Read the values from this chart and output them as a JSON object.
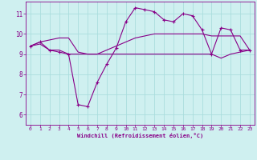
{
  "xlabel": "Windchill (Refroidissement éolien,°C)",
  "xlim": [
    -0.5,
    23.5
  ],
  "ylim": [
    5.5,
    11.6
  ],
  "yticks": [
    6,
    7,
    8,
    9,
    10,
    11
  ],
  "xticks": [
    0,
    1,
    2,
    3,
    4,
    5,
    6,
    7,
    8,
    9,
    10,
    11,
    12,
    13,
    14,
    15,
    16,
    17,
    18,
    19,
    20,
    21,
    22,
    23
  ],
  "bg_color": "#cff0f0",
  "line_color": "#880088",
  "grid_color": "#aadddd",
  "line1_x": [
    0,
    1,
    2,
    3,
    4,
    5,
    6,
    7,
    8,
    9,
    10,
    11,
    12,
    13,
    14,
    15,
    16,
    17,
    18,
    19,
    20,
    21,
    22,
    23
  ],
  "line1_y": [
    9.4,
    9.6,
    9.2,
    9.1,
    9.0,
    6.5,
    6.4,
    7.6,
    8.5,
    9.3,
    10.6,
    11.3,
    11.2,
    11.1,
    10.7,
    10.6,
    11.0,
    10.9,
    10.2,
    9.0,
    10.3,
    10.2,
    9.2,
    9.2
  ],
  "line2_x": [
    0,
    1,
    2,
    3,
    4,
    5,
    6,
    7,
    8,
    9,
    10,
    11,
    12,
    13,
    14,
    15,
    16,
    17,
    18,
    19,
    20,
    21,
    22,
    23
  ],
  "line2_y": [
    9.4,
    9.5,
    9.2,
    9.2,
    9.0,
    9.0,
    9.0,
    9.0,
    9.0,
    9.0,
    9.0,
    9.0,
    9.0,
    9.0,
    9.0,
    9.0,
    9.0,
    9.0,
    9.0,
    9.0,
    8.8,
    9.0,
    9.1,
    9.2
  ],
  "line3_x": [
    0,
    1,
    2,
    3,
    4,
    5,
    6,
    7,
    8,
    9,
    10,
    11,
    12,
    13,
    14,
    15,
    16,
    17,
    18,
    19,
    20,
    21,
    22,
    23
  ],
  "line3_y": [
    9.4,
    9.6,
    9.7,
    9.8,
    9.8,
    9.1,
    9.0,
    9.0,
    9.2,
    9.4,
    9.6,
    9.8,
    9.9,
    10.0,
    10.0,
    10.0,
    10.0,
    10.0,
    10.0,
    9.9,
    9.9,
    9.9,
    9.9,
    9.2
  ]
}
